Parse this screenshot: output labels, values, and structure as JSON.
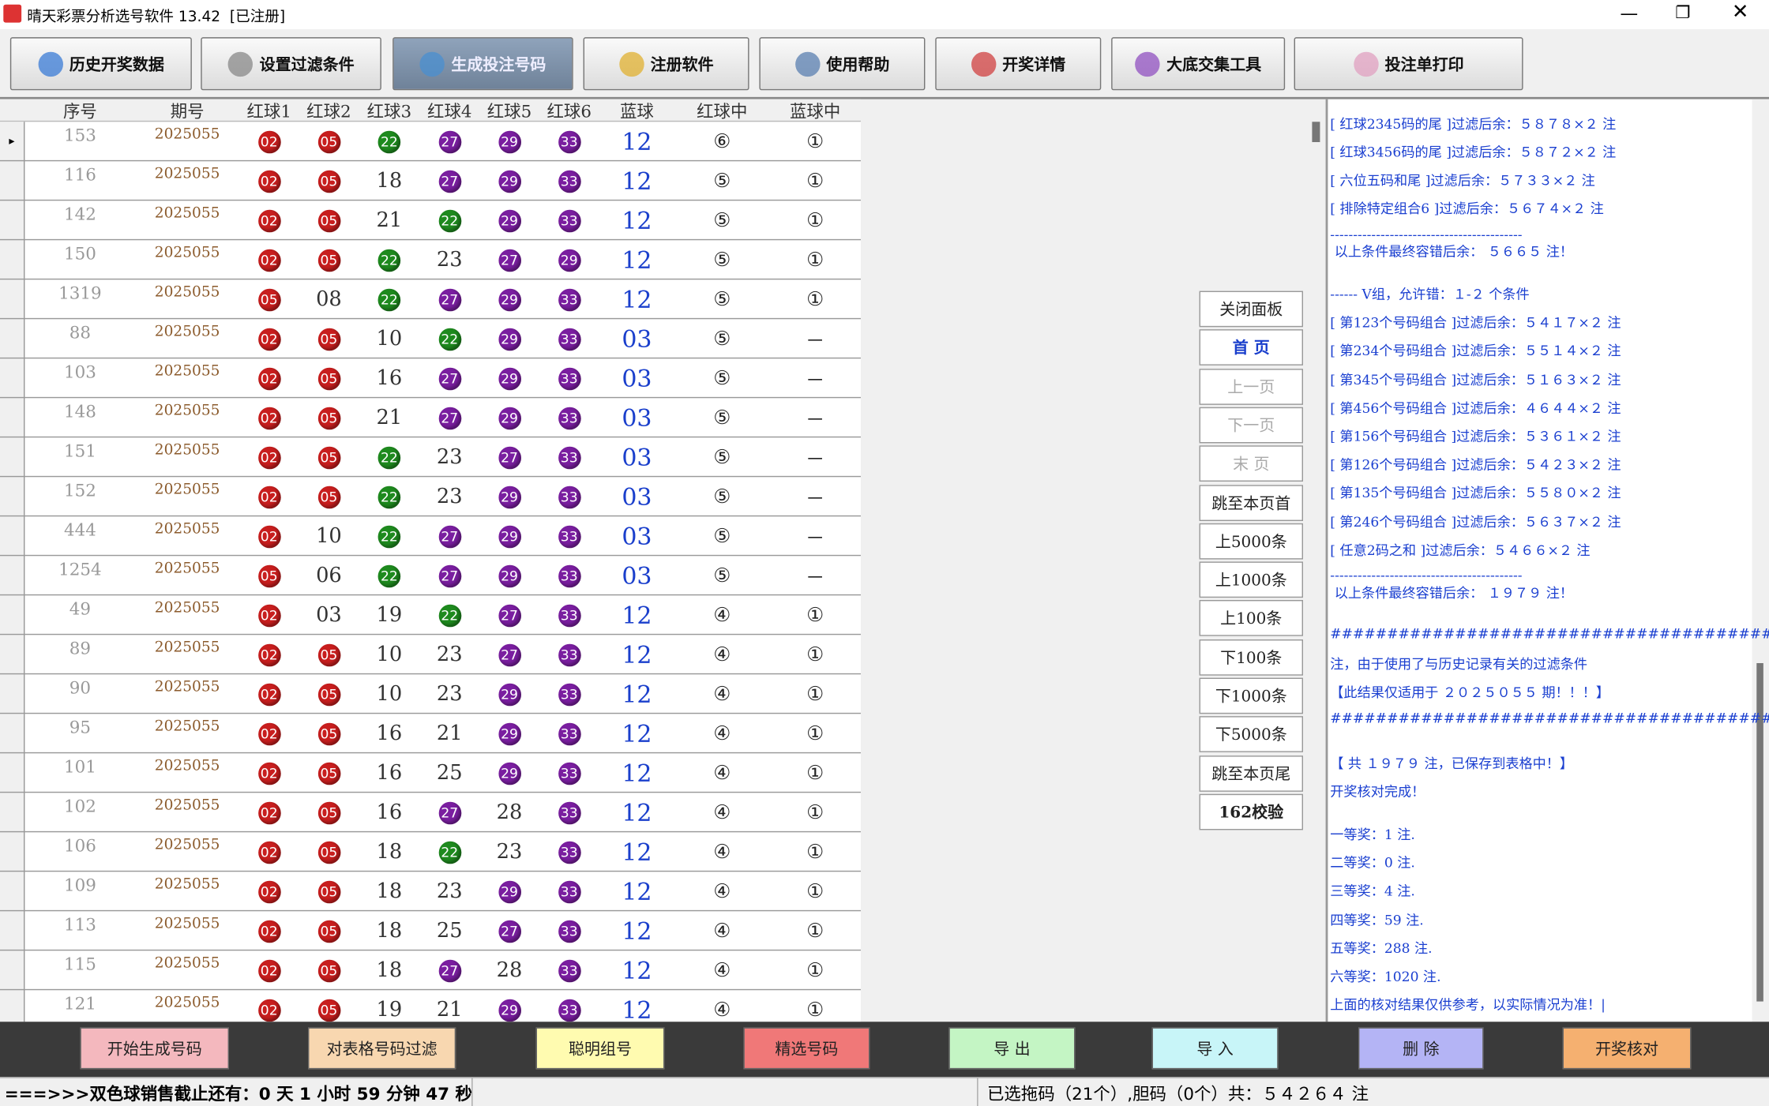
{
  "window": {
    "title": "晴天彩票分析选号软件 13.42  [已注册]"
  },
  "toolbar": [
    "历史开奖数据",
    "设置过滤条件",
    "生成投注号码",
    "注册软件",
    "使用帮助",
    "开奖详情",
    "大底交集工具",
    "投注单打印"
  ],
  "table": {
    "headers": [
      "序号",
      "期号",
      "红球1",
      "红球2",
      "红球3",
      "红球4",
      "红球5",
      "红球6",
      "蓝球",
      "红球中",
      "蓝球中"
    ],
    "ball_colors": {
      "02": "#c81e1e",
      "05": "#c81e1e",
      "22": "#1e8a1e",
      "27": "#7a1ea0",
      "29": "#7a1ea0",
      "33": "#7a1ea0"
    },
    "rows": [
      [
        "153",
        "2025055",
        "02",
        "05",
        "22",
        "27",
        "29",
        "33",
        "12",
        "⑥",
        "①"
      ],
      [
        "116",
        "2025055",
        "02",
        "05",
        "18",
        "27",
        "29",
        "33",
        "12",
        "⑤",
        "①"
      ],
      [
        "142",
        "2025055",
        "02",
        "05",
        "21",
        "22",
        "29",
        "33",
        "12",
        "⑤",
        "①"
      ],
      [
        "150",
        "2025055",
        "02",
        "05",
        "22",
        "23",
        "27",
        "29",
        "12",
        "⑤",
        "①"
      ],
      [
        "1319",
        "2025055",
        "05",
        "08",
        "22",
        "27",
        "29",
        "33",
        "12",
        "⑤",
        "①"
      ],
      [
        "88",
        "2025055",
        "02",
        "05",
        "10",
        "22",
        "29",
        "33",
        "03",
        "⑤",
        "－"
      ],
      [
        "103",
        "2025055",
        "02",
        "05",
        "16",
        "27",
        "29",
        "33",
        "03",
        "⑤",
        "－"
      ],
      [
        "148",
        "2025055",
        "02",
        "05",
        "21",
        "27",
        "29",
        "33",
        "03",
        "⑤",
        "－"
      ],
      [
        "151",
        "2025055",
        "02",
        "05",
        "22",
        "23",
        "27",
        "33",
        "03",
        "⑤",
        "－"
      ],
      [
        "152",
        "2025055",
        "02",
        "05",
        "22",
        "23",
        "29",
        "33",
        "03",
        "⑤",
        "－"
      ],
      [
        "444",
        "2025055",
        "02",
        "10",
        "22",
        "27",
        "29",
        "33",
        "03",
        "⑤",
        "－"
      ],
      [
        "1254",
        "2025055",
        "05",
        "06",
        "22",
        "27",
        "29",
        "33",
        "03",
        "⑤",
        "－"
      ],
      [
        "49",
        "2025055",
        "02",
        "03",
        "19",
        "22",
        "27",
        "33",
        "12",
        "④",
        "①"
      ],
      [
        "89",
        "2025055",
        "02",
        "05",
        "10",
        "23",
        "27",
        "33",
        "12",
        "④",
        "①"
      ],
      [
        "90",
        "2025055",
        "02",
        "05",
        "10",
        "23",
        "29",
        "33",
        "12",
        "④",
        "①"
      ],
      [
        "95",
        "2025055",
        "02",
        "05",
        "16",
        "21",
        "29",
        "33",
        "12",
        "④",
        "①"
      ],
      [
        "101",
        "2025055",
        "02",
        "05",
        "16",
        "25",
        "29",
        "33",
        "12",
        "④",
        "①"
      ],
      [
        "102",
        "2025055",
        "02",
        "05",
        "16",
        "27",
        "28",
        "33",
        "12",
        "④",
        "①"
      ],
      [
        "106",
        "2025055",
        "02",
        "05",
        "18",
        "22",
        "23",
        "33",
        "12",
        "④",
        "①"
      ],
      [
        "109",
        "2025055",
        "02",
        "05",
        "18",
        "23",
        "29",
        "33",
        "12",
        "④",
        "①"
      ],
      [
        "113",
        "2025055",
        "02",
        "05",
        "18",
        "25",
        "27",
        "33",
        "12",
        "④",
        "①"
      ],
      [
        "115",
        "2025055",
        "02",
        "05",
        "18",
        "27",
        "28",
        "33",
        "12",
        "④",
        "①"
      ],
      [
        "121",
        "2025055",
        "02",
        "05",
        "19",
        "21",
        "29",
        "33",
        "12",
        "④",
        "①"
      ]
    ]
  },
  "side_buttons": [
    "关闭面板",
    "首 页",
    "上一页",
    "下一页",
    "末 页",
    "跳至本页首",
    "上5000条",
    "上1000条",
    "上100条",
    "下100条",
    "下1000条",
    "下5000条",
    "跳至本页尾",
    "162校验"
  ],
  "log_lines": [
    "[ 红球2345码的尾 ]过滤后余：５８７８×２ 注",
    "[ 红球3456码的尾 ]过滤后余：５８７２×２ 注",
    "[ 六位五码和尾 ]过滤后余：５７３３×２ 注",
    "[ 排除特定组合6 ]过滤后余：５６７４×２ 注",
    "------------------------------------------",
    " 以上条件最终容错后余： ５６６５ 注！",
    "------ V组，允许错：１-２ 个条件",
    "[ 第123个号码组合 ]过滤后余：５４１７×２ 注",
    "[ 第234个号码组合 ]过滤后余：５５１４×２ 注",
    "[ 第345个号码组合 ]过滤后余：５１６３×２ 注",
    "[ 第456个号码组合 ]过滤后余：４６４４×２ 注",
    "[ 第156个号码组合 ]过滤后余：５３６１×２ 注",
    "[ 第126个号码组合 ]过滤后余：５４２３×２ 注",
    "[ 第135个号码组合 ]过滤后余：５５８０×２ 注",
    "[ 第246个号码组合 ]过滤后余：５６３７×２ 注",
    "[ 任意2码之和 ]过滤后余：５４６６×２ 注",
    "------------------------------------------",
    " 以上条件最终容错后余： １９７９ 注！",
    "##############################################",
    "注，由于使用了与历史记录有关的过滤条件",
    "【此结果仅适用于 ２０２５０５５ 期！！！】",
    "##############################################",
    "【 共 １９７９ 注，已保存到表格中！】",
    "开奖核对完成！",
    "一等奖：1 注.",
    "二等奖：0 注.",
    "三等奖：4 注.",
    "四等奖：59 注.",
    "五等奖：288 注.",
    "六等奖：1020 注.",
    "上面的核对结果仅供参考，以实际情况为准！|"
  ],
  "bottom_buttons": [
    "开始生成号码",
    "对表格号码过滤",
    "聪明组号",
    "精选号码",
    "导 出",
    "导 入",
    "删 除",
    "开奖核对"
  ],
  "status": {
    "countdown": "===>>>双色球销售截止还有：0 天 1 小时 59 分钟 47 秒",
    "selection": "已选拖码（21个）,胆码（0个）共：５４２６４ 注"
  }
}
